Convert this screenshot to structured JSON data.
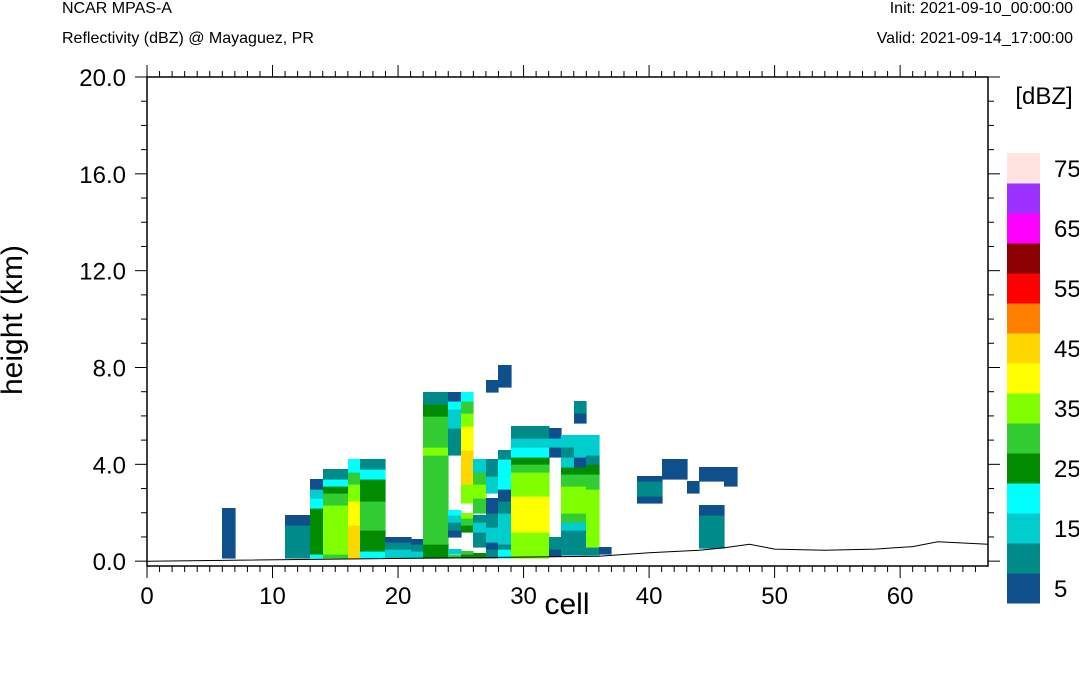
{
  "header": {
    "model": "NCAR MPAS-A",
    "subtitle": "Reflectivity (dBZ) @ Mayaguez, PR",
    "init": "Init: 2021-09-10_00:00:00",
    "valid": "Valid: 2021-09-14_17:00:00"
  },
  "chart_data": {
    "type": "heatmap",
    "title": "Reflectivity (dBZ) @ Mayaguez, PR",
    "xlabel": "cell",
    "ylabel": "height (km)",
    "xlim": [
      0,
      67
    ],
    "ylim": [
      -0.2,
      20.0
    ],
    "xticks": [
      "0",
      "10",
      "20",
      "30",
      "40",
      "50",
      "60"
    ],
    "yticks": [
      "0.0",
      "4.0",
      "8.0",
      "12.0",
      "16.0",
      "20.0"
    ],
    "colorbar": {
      "unit": "[dBZ]",
      "levels": [
        5,
        10,
        15,
        20,
        25,
        30,
        35,
        40,
        45,
        50,
        55,
        60,
        65,
        70,
        75
      ],
      "labels": [
        "5",
        "15",
        "25",
        "35",
        "45",
        "55",
        "65",
        "75"
      ],
      "colors": [
        "#0f4f8c",
        "#008b8b",
        "#00cdcd",
        "#00ffff",
        "#008b00",
        "#32cd32",
        "#7fff00",
        "#ffff00",
        "#ffd700",
        "#ff7f00",
        "#ff0000",
        "#8b0000",
        "#ff00ff",
        "#9b30ff",
        "#ffe4e1"
      ]
    },
    "terrain": [
      [
        0,
        0
      ],
      [
        36,
        0.2
      ],
      [
        40,
        0.35
      ],
      [
        44,
        0.45
      ],
      [
        46,
        0.55
      ],
      [
        48,
        0.7
      ],
      [
        50,
        0.5
      ],
      [
        54,
        0.45
      ],
      [
        58,
        0.5
      ],
      [
        61,
        0.6
      ],
      [
        63,
        0.8
      ],
      [
        65,
        0.75
      ],
      [
        67,
        0.7
      ]
    ],
    "columns": [
      {
        "x": 6.5,
        "segs": [
          [
            0.15,
            2.2,
            5
          ]
        ]
      },
      {
        "x": 11.5,
        "segs": [
          [
            0.15,
            1.5,
            10
          ],
          [
            1.5,
            1.9,
            5
          ]
        ]
      },
      {
        "x": 12.5,
        "segs": [
          [
            0.15,
            1.5,
            10
          ],
          [
            1.5,
            1.9,
            5
          ]
        ]
      },
      {
        "x": 13.5,
        "segs": [
          [
            0.15,
            0.3,
            20
          ],
          [
            0.3,
            1.3,
            25
          ],
          [
            1.3,
            2.2,
            25
          ],
          [
            2.2,
            2.6,
            20
          ],
          [
            2.6,
            3.0,
            15
          ],
          [
            3.0,
            3.4,
            5
          ]
        ]
      },
      {
        "x": 14.5,
        "segs": [
          [
            0.15,
            0.3,
            30
          ],
          [
            0.3,
            2.3,
            35
          ],
          [
            2.3,
            2.8,
            30
          ],
          [
            2.8,
            3.1,
            25
          ],
          [
            3.1,
            3.4,
            20
          ],
          [
            3.4,
            3.8,
            10
          ]
        ]
      },
      {
        "x": 15.5,
        "segs": [
          [
            0.15,
            0.3,
            30
          ],
          [
            0.3,
            2.3,
            35
          ],
          [
            2.3,
            2.8,
            30
          ],
          [
            2.8,
            3.1,
            25
          ],
          [
            3.1,
            3.4,
            20
          ],
          [
            3.4,
            3.8,
            10
          ]
        ]
      },
      {
        "x": 16.5,
        "segs": [
          [
            0.15,
            1.5,
            45
          ],
          [
            1.5,
            2.5,
            40
          ],
          [
            2.5,
            3.2,
            35
          ],
          [
            3.2,
            3.7,
            30
          ],
          [
            3.7,
            4.2,
            20
          ]
        ]
      },
      {
        "x": 17.5,
        "segs": [
          [
            0.15,
            0.4,
            20
          ],
          [
            0.4,
            1.3,
            25
          ],
          [
            1.3,
            2.5,
            30
          ],
          [
            2.5,
            3.4,
            25
          ],
          [
            3.4,
            3.8,
            20
          ],
          [
            3.8,
            4.2,
            10
          ]
        ]
      },
      {
        "x": 18.5,
        "segs": [
          [
            0.15,
            0.4,
            20
          ],
          [
            0.4,
            1.3,
            25
          ],
          [
            1.3,
            2.5,
            30
          ],
          [
            2.5,
            3.4,
            25
          ],
          [
            3.4,
            3.8,
            20
          ],
          [
            3.8,
            4.2,
            10
          ]
        ]
      },
      {
        "x": 19.5,
        "segs": [
          [
            0.15,
            0.5,
            15
          ],
          [
            0.5,
            0.8,
            10
          ],
          [
            0.8,
            1.0,
            5
          ]
        ]
      },
      {
        "x": 20.5,
        "segs": [
          [
            0.15,
            0.5,
            15
          ],
          [
            0.5,
            0.8,
            10
          ],
          [
            0.8,
            1.0,
            5
          ]
        ]
      },
      {
        "x": 21.5,
        "segs": [
          [
            0.15,
            0.4,
            15
          ],
          [
            0.4,
            0.7,
            10
          ],
          [
            0.7,
            0.9,
            5
          ]
        ]
      },
      {
        "x": 22.5,
        "segs": [
          [
            0.15,
            0.7,
            25
          ],
          [
            0.7,
            4.4,
            30
          ],
          [
            4.4,
            4.7,
            35
          ],
          [
            4.7,
            6.0,
            30
          ],
          [
            6.0,
            6.5,
            25
          ],
          [
            6.5,
            7.0,
            10
          ]
        ]
      },
      {
        "x": 23.5,
        "segs": [
          [
            0.15,
            0.7,
            25
          ],
          [
            0.7,
            4.4,
            30
          ],
          [
            4.4,
            4.7,
            35
          ],
          [
            4.7,
            6.0,
            30
          ],
          [
            6.0,
            6.5,
            25
          ],
          [
            6.5,
            7.0,
            10
          ]
        ]
      },
      {
        "x": 24.5,
        "segs": [
          [
            0.15,
            0.25,
            30
          ],
          [
            0.3,
            0.5,
            15
          ],
          [
            1.0,
            1.3,
            5
          ],
          [
            1.3,
            1.6,
            10
          ],
          [
            1.6,
            1.9,
            15
          ],
          [
            1.9,
            2.1,
            20
          ],
          [
            4.4,
            5.5,
            10
          ],
          [
            5.5,
            6.3,
            15
          ],
          [
            6.3,
            6.6,
            20
          ],
          [
            6.6,
            7.0,
            5
          ]
        ]
      },
      {
        "x": 25.5,
        "segs": [
          [
            0.15,
            0.3,
            25
          ],
          [
            0.3,
            0.4,
            30
          ],
          [
            1.2,
            1.5,
            25
          ],
          [
            1.5,
            1.8,
            30
          ],
          [
            1.8,
            2.0,
            35
          ],
          [
            2.4,
            3.2,
            35
          ],
          [
            3.2,
            4.6,
            45
          ],
          [
            4.6,
            5.6,
            40
          ],
          [
            5.6,
            6.1,
            35
          ],
          [
            6.1,
            6.6,
            30
          ],
          [
            6.6,
            7.0,
            20
          ]
        ]
      },
      {
        "x": 26.5,
        "segs": [
          [
            0.15,
            0.35,
            25
          ],
          [
            0.6,
            1.2,
            10
          ],
          [
            1.2,
            1.6,
            15
          ],
          [
            1.6,
            1.9,
            10
          ],
          [
            2.0,
            2.6,
            30
          ],
          [
            2.6,
            3.2,
            35
          ],
          [
            3.2,
            3.7,
            30
          ],
          [
            3.7,
            4.2,
            15
          ]
        ]
      },
      {
        "x": 27.5,
        "segs": [
          [
            0.15,
            0.5,
            10
          ],
          [
            0.5,
            0.8,
            5
          ],
          [
            0.8,
            1.4,
            15
          ],
          [
            1.4,
            2.0,
            10
          ],
          [
            2.0,
            2.6,
            5
          ],
          [
            2.8,
            3.5,
            15
          ],
          [
            3.5,
            4.2,
            10
          ],
          [
            7.0,
            7.5,
            5
          ]
        ]
      },
      {
        "x": 28.5,
        "segs": [
          [
            0.15,
            0.5,
            20
          ],
          [
            0.5,
            0.7,
            10
          ],
          [
            0.7,
            2.0,
            15
          ],
          [
            2.0,
            2.5,
            10
          ],
          [
            2.5,
            3.0,
            5
          ],
          [
            3.0,
            4.2,
            20
          ],
          [
            4.2,
            4.6,
            10
          ],
          [
            7.2,
            8.1,
            5
          ]
        ]
      },
      {
        "x": 29.5,
        "segs": [
          [
            0.15,
            1.2,
            35
          ],
          [
            1.2,
            2.7,
            40
          ],
          [
            2.7,
            3.7,
            35
          ],
          [
            3.7,
            4.0,
            30
          ],
          [
            4.0,
            4.3,
            25
          ],
          [
            4.3,
            4.7,
            20
          ],
          [
            4.7,
            5.1,
            15
          ],
          [
            5.1,
            5.6,
            10
          ]
        ]
      },
      {
        "x": 30.5,
        "segs": [
          [
            0.15,
            1.2,
            35
          ],
          [
            1.2,
            2.7,
            40
          ],
          [
            2.7,
            3.7,
            35
          ],
          [
            3.7,
            4.0,
            30
          ],
          [
            4.0,
            4.3,
            25
          ],
          [
            4.3,
            4.7,
            20
          ],
          [
            4.7,
            5.1,
            15
          ],
          [
            5.1,
            5.6,
            10
          ]
        ]
      },
      {
        "x": 31.5,
        "segs": [
          [
            0.15,
            1.2,
            35
          ],
          [
            1.2,
            2.7,
            40
          ],
          [
            2.7,
            3.7,
            35
          ],
          [
            3.7,
            4.0,
            30
          ],
          [
            4.0,
            4.3,
            25
          ],
          [
            4.3,
            4.7,
            20
          ],
          [
            4.7,
            5.1,
            15
          ],
          [
            5.1,
            5.6,
            10
          ]
        ]
      },
      {
        "x": 32.5,
        "segs": [
          [
            0.2,
            0.5,
            5
          ],
          [
            0.5,
            1.0,
            10
          ],
          [
            4.3,
            4.7,
            5
          ],
          [
            4.7,
            5.1,
            15
          ],
          [
            5.1,
            5.5,
            5
          ]
        ]
      },
      {
        "x": 33.5,
        "segs": [
          [
            0.25,
            1.3,
            10
          ],
          [
            1.3,
            1.6,
            15
          ],
          [
            1.6,
            2.0,
            30
          ],
          [
            2.0,
            3.1,
            35
          ],
          [
            3.1,
            3.6,
            30
          ],
          [
            3.6,
            3.9,
            25
          ],
          [
            3.9,
            4.3,
            15
          ],
          [
            4.3,
            4.7,
            10
          ],
          [
            4.7,
            5.2,
            15
          ]
        ]
      },
      {
        "x": 34.5,
        "segs": [
          [
            0.25,
            1.3,
            10
          ],
          [
            1.3,
            1.6,
            15
          ],
          [
            1.6,
            2.0,
            30
          ],
          [
            2.0,
            3.1,
            35
          ],
          [
            3.1,
            3.6,
            30
          ],
          [
            3.6,
            3.9,
            25
          ],
          [
            3.9,
            4.3,
            5
          ],
          [
            4.3,
            4.7,
            15
          ],
          [
            4.7,
            5.2,
            15
          ],
          [
            5.7,
            6.1,
            5
          ],
          [
            6.1,
            6.6,
            10
          ]
        ]
      },
      {
        "x": 35.5,
        "segs": [
          [
            0.25,
            0.6,
            10
          ],
          [
            0.6,
            3.0,
            35
          ],
          [
            3.0,
            3.6,
            30
          ],
          [
            3.6,
            4.0,
            25
          ],
          [
            4.0,
            4.4,
            10
          ],
          [
            4.4,
            4.8,
            15
          ],
          [
            4.8,
            5.2,
            15
          ]
        ]
      },
      {
        "x": 36.5,
        "segs": [
          [
            0.3,
            0.6,
            5
          ]
        ]
      },
      {
        "x": 39.5,
        "segs": [
          [
            2.4,
            2.7,
            5
          ],
          [
            2.7,
            3.3,
            10
          ],
          [
            3.3,
            3.5,
            5
          ]
        ]
      },
      {
        "x": 40.5,
        "segs": [
          [
            2.4,
            2.7,
            5
          ],
          [
            2.7,
            3.3,
            10
          ],
          [
            3.3,
            3.5,
            5
          ]
        ]
      },
      {
        "x": 41.5,
        "segs": [
          [
            3.4,
            4.2,
            5
          ]
        ]
      },
      {
        "x": 42.5,
        "segs": [
          [
            3.4,
            4.2,
            5
          ]
        ]
      },
      {
        "x": 43.5,
        "segs": [
          [
            2.8,
            3.3,
            5
          ]
        ]
      },
      {
        "x": 44.5,
        "segs": [
          [
            0.55,
            1.9,
            10
          ],
          [
            1.9,
            2.3,
            5
          ],
          [
            3.3,
            3.9,
            5
          ]
        ]
      },
      {
        "x": 45.5,
        "segs": [
          [
            0.55,
            1.9,
            10
          ],
          [
            1.9,
            2.3,
            5
          ],
          [
            3.3,
            3.9,
            5
          ]
        ]
      },
      {
        "x": 46.5,
        "segs": [
          [
            3.1,
            3.9,
            5
          ]
        ]
      }
    ]
  }
}
